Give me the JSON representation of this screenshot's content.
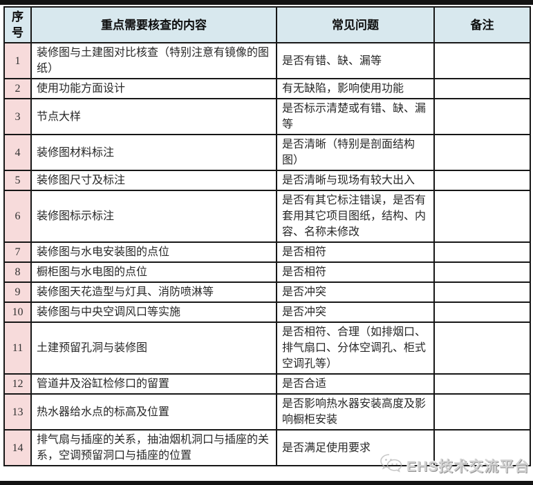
{
  "colors": {
    "header_bg": "#d8e8ee",
    "index_bg": "#f7dbdb",
    "border": "#161616",
    "watermark_gray": "#a8a8a8"
  },
  "table": {
    "columns": [
      {
        "key": "index",
        "label": "序号"
      },
      {
        "key": "content",
        "label": "重点需要核查的内容"
      },
      {
        "key": "issues",
        "label": "常见问题"
      },
      {
        "key": "remarks",
        "label": "备注"
      }
    ],
    "rows": [
      {
        "index": "1",
        "content": "装修图与土建图对比核查（特别注意有镜像的图纸）",
        "issues": "是否有错、缺、漏等",
        "remarks": ""
      },
      {
        "index": "2",
        "content": "使用功能方面设计",
        "issues": "有无缺陷，影响使用功能",
        "remarks": ""
      },
      {
        "index": "3",
        "content": "节点大样",
        "issues": "是否标示清楚或有错、缺、漏等",
        "remarks": ""
      },
      {
        "index": "4",
        "content": "装修图材料标注",
        "issues": "是否清晰（特别是剖面结构图）",
        "remarks": ""
      },
      {
        "index": "5",
        "content": "装修图尺寸及标注",
        "issues": "是否清晰与现场有较大出入",
        "remarks": ""
      },
      {
        "index": "6",
        "content": "装修图标示标注",
        "issues": "是否有其它标注错误，是否有套用其它项目图纸，结构、内容、名称未修改",
        "remarks": ""
      },
      {
        "index": "7",
        "content": "装修图与水电安装图的点位",
        "issues": "是否相符",
        "remarks": ""
      },
      {
        "index": "8",
        "content": "橱柜图与水电图的点位",
        "issues": "是否相符",
        "remarks": ""
      },
      {
        "index": "9",
        "content": "装修图天花造型与灯具、消防喷淋等",
        "issues": "是否冲突",
        "remarks": ""
      },
      {
        "index": "10",
        "content": "装修图与中央空调风口等实施",
        "issues": "是否冲突",
        "remarks": ""
      },
      {
        "index": "11",
        "content": "土建预留孔洞与装修图",
        "issues": "是否相符、合理（如排烟口、排气扇口、分体空调孔、柜式空调孔等）",
        "remarks": ""
      },
      {
        "index": "12",
        "content": "管道井及浴缸检修口的留置",
        "issues": "是否合适",
        "remarks": ""
      },
      {
        "index": "13",
        "content": "热水器给水点的标高及位置",
        "issues": "是否影响热水器安装高度及影响橱柜安装",
        "remarks": ""
      },
      {
        "index": "14",
        "content": "排气扇与插座的关系，抽油烟机洞口与插座的关系，空调预留洞口与插座的位置",
        "issues": "是否满足使用要求",
        "remarks": ""
      }
    ]
  },
  "watermark": {
    "label": "EHS技术交流平台",
    "icon": "wechat-icon"
  }
}
